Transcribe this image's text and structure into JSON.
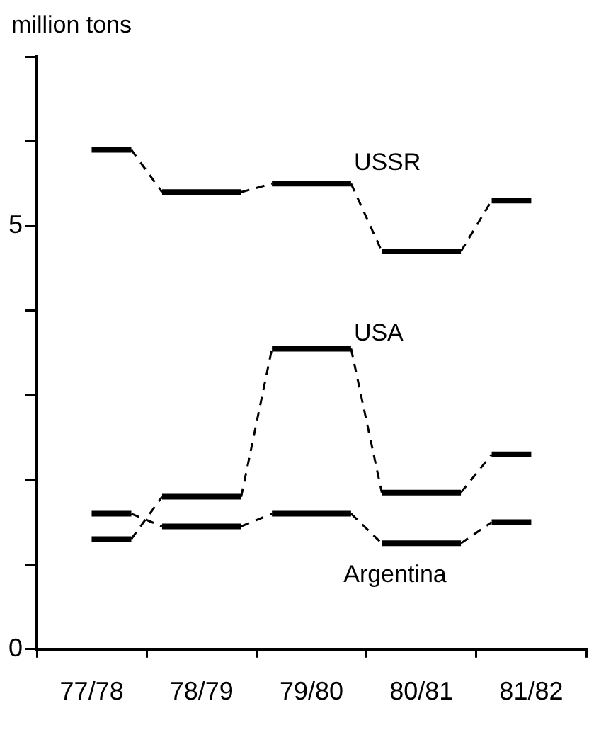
{
  "chart_data": {
    "type": "step",
    "ylabel": "million tons",
    "categories": [
      "77/78",
      "78/79",
      "79/80",
      "80/81",
      "81/82"
    ],
    "series": [
      {
        "name": "USSR",
        "color": "#000000",
        "values": [
          5.9,
          5.4,
          5.5,
          4.7,
          5.3
        ]
      },
      {
        "name": "USA",
        "color": "#000000",
        "values": [
          1.3,
          1.8,
          3.55,
          1.85,
          2.3
        ]
      },
      {
        "name": "Argentina",
        "color": "#000000",
        "values": [
          1.6,
          1.45,
          1.6,
          1.25,
          1.5
        ]
      }
    ],
    "ylim": [
      0,
      7
    ],
    "yticks": [
      0,
      {
        "value": 1,
        "label": null
      },
      {
        "value": 2,
        "label": null
      },
      {
        "value": 3,
        "label": null
      },
      {
        "value": 4,
        "label": null
      },
      5,
      {
        "value": 6,
        "label": null
      },
      {
        "value": 7,
        "label": null
      }
    ],
    "grid": false,
    "legend": false,
    "line_style": "dashed"
  }
}
